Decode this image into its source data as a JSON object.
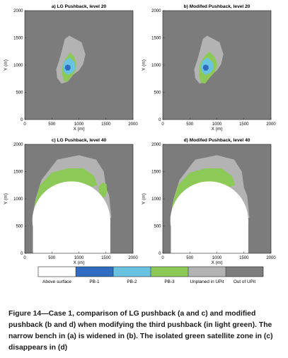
{
  "figure": {
    "caption": "Figure 14—Case 1, comparison of LG pushback (a and c) and modified pushback (b and d) when modifying the third pushback (in light green). The narrow bench in (a) is widened in (b). The isolated green satellite zone in (c) disappears in (d)",
    "colors": {
      "background": "#7c7c7c",
      "unplaned": "#b3b3b3",
      "pb1": "#2f6cc0",
      "pb2": "#6ac3e1",
      "pb3": "#8dc956",
      "above_surface": "#ffffff"
    }
  },
  "panels": [
    {
      "id": "a",
      "title": "a) LG Pushback, level 20",
      "xlabel": "X (m)",
      "ylabel": "Y (m)"
    },
    {
      "id": "b",
      "title": "b) Modifed Pushback, level 20",
      "xlabel": "X (m)",
      "ylabel": "Y (m)"
    },
    {
      "id": "c",
      "title": "c) LG Pushback, level 40",
      "xlabel": "X (m)",
      "ylabel": "Y (m)"
    },
    {
      "id": "d",
      "title": "d) Modifed Pushback, level 40",
      "xlabel": "X (m)",
      "ylabel": "Y (m)"
    }
  ],
  "axes": {
    "xlim": [
      0,
      2000
    ],
    "ylim": [
      0,
      2000
    ],
    "xticks": [
      "0",
      "500",
      "1000",
      "1500",
      "2000"
    ],
    "yticks": [
      "0",
      "500",
      "1000",
      "1500",
      "2000"
    ]
  },
  "legend": [
    {
      "label": "Above surface",
      "color": "#ffffff"
    },
    {
      "label": "PB-1",
      "color": "#2f6cc0"
    },
    {
      "label": "PB-2",
      "color": "#6ac3e1"
    },
    {
      "label": "PB-3",
      "color": "#8dc956"
    },
    {
      "label": "Unplaned in UPit",
      "color": "#b3b3b3"
    },
    {
      "label": "Out of UPit",
      "color": "#7c7c7c"
    }
  ]
}
